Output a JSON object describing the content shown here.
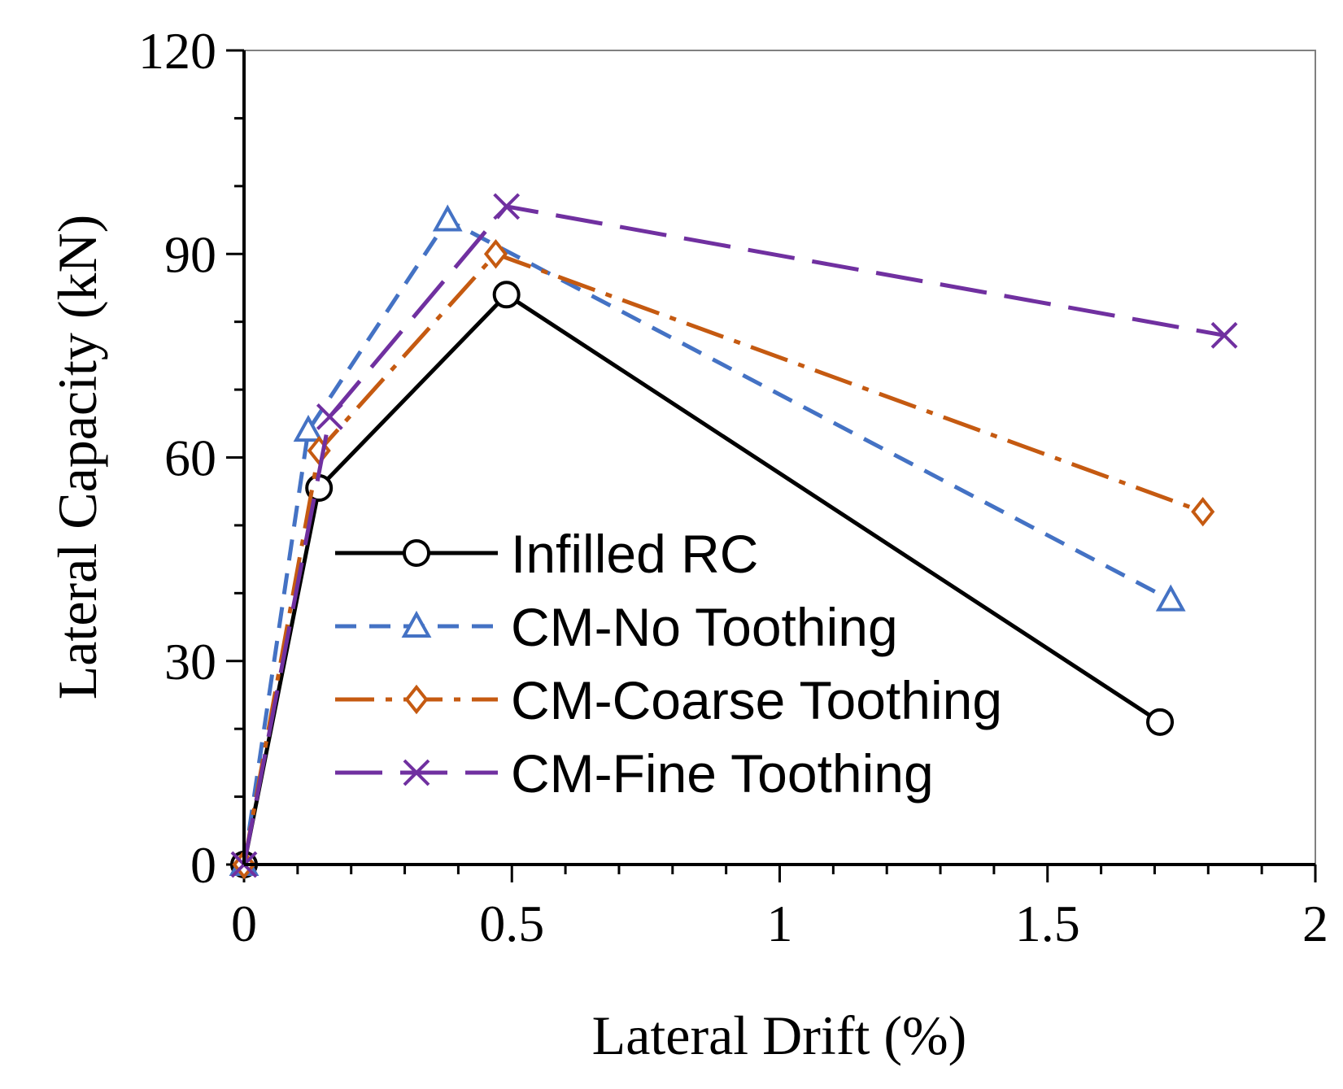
{
  "chart_data": {
    "type": "line",
    "title": "",
    "xlabel": "Lateral Drift (%)",
    "ylabel": "Lateral Capacity (kN)",
    "xlim": [
      0,
      2
    ],
    "ylim": [
      0,
      120
    ],
    "x_ticks": [
      0,
      0.5,
      1,
      1.5,
      2
    ],
    "x_tick_labels": [
      "0",
      "0.5",
      "1",
      "1.5",
      "2"
    ],
    "x_minor_step": 0.1,
    "y_ticks": [
      0,
      30,
      60,
      90,
      120
    ],
    "y_tick_labels": [
      "0",
      "30",
      "60",
      "90",
      "120"
    ],
    "y_minor_step": 10,
    "grid": false,
    "legend_position": "bottom-left",
    "series": [
      {
        "name": "Infilled RC",
        "color": "#000000",
        "dash": "solid",
        "marker": "circle",
        "points": [
          [
            0,
            0
          ],
          [
            0.14,
            55.5
          ],
          [
            0.49,
            84
          ],
          [
            1.71,
            21
          ]
        ]
      },
      {
        "name": "CM-No Toothing",
        "color": "#4472C4",
        "dash": "dashed",
        "marker": "triangle",
        "points": [
          [
            0,
            0
          ],
          [
            0.12,
            64
          ],
          [
            0.38,
            95
          ],
          [
            1.73,
            39
          ]
        ]
      },
      {
        "name": "CM-Coarse Toothing",
        "color": "#C55A11",
        "dash": "dashdot",
        "marker": "diamond",
        "points": [
          [
            0,
            0
          ],
          [
            0.14,
            61
          ],
          [
            0.47,
            90
          ],
          [
            1.79,
            52
          ]
        ]
      },
      {
        "name": "CM-Fine Toothing",
        "color": "#7030A0",
        "dash": "longdash",
        "marker": "x",
        "points": [
          [
            0,
            0
          ],
          [
            0.16,
            66
          ],
          [
            0.49,
            97
          ],
          [
            1.83,
            78
          ]
        ]
      }
    ]
  }
}
